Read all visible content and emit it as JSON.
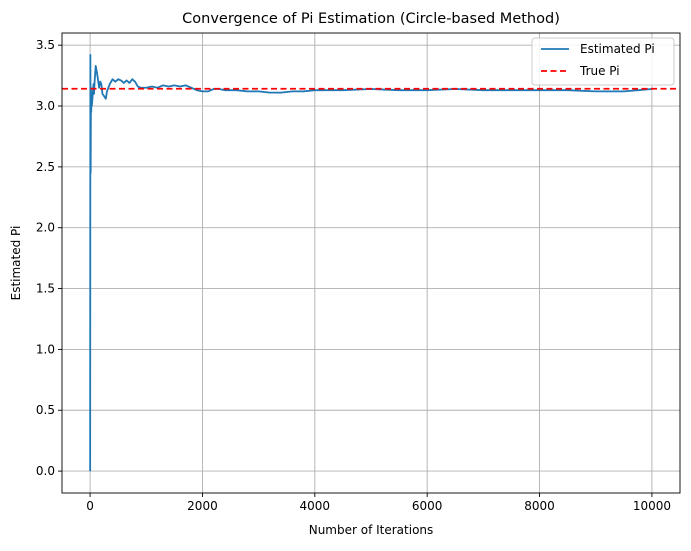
{
  "chart_data": {
    "type": "line",
    "title": "Convergence of Pi Estimation (Circle-based Method)",
    "xlabel": "Number of Iterations",
    "ylabel": "Estimated Pi",
    "xlim": [
      -500,
      10500
    ],
    "ylim": [
      -0.18,
      3.6
    ],
    "xticks": [
      0,
      2000,
      4000,
      6000,
      8000,
      10000
    ],
    "yticks": [
      0.0,
      0.5,
      1.0,
      1.5,
      2.0,
      2.5,
      3.0,
      3.5
    ],
    "xtick_labels": [
      "0",
      "2000",
      "4000",
      "6000",
      "8000",
      "10000"
    ],
    "ytick_labels": [
      "0.0",
      "0.5",
      "1.0",
      "1.5",
      "2.0",
      "2.5",
      "3.0",
      "3.5"
    ],
    "grid": true,
    "legend_position": "top-right",
    "series": [
      {
        "name": "Estimated Pi",
        "color": "#1f77b4",
        "style": "solid",
        "x": [
          1,
          5,
          10,
          15,
          20,
          25,
          30,
          40,
          50,
          60,
          70,
          80,
          100,
          120,
          140,
          160,
          180,
          200,
          220,
          250,
          280,
          300,
          350,
          400,
          450,
          500,
          550,
          600,
          650,
          700,
          750,
          800,
          850,
          900,
          1000,
          1100,
          1200,
          1300,
          1400,
          1500,
          1600,
          1700,
          1800,
          1900,
          2000,
          2100,
          2200,
          2300,
          2400,
          2600,
          2800,
          3000,
          3200,
          3400,
          3600,
          3800,
          4000,
          4500,
          5000,
          5500,
          6000,
          6500,
          7000,
          7500,
          8000,
          8500,
          9000,
          9500,
          10000
        ],
        "y": [
          0.0,
          3.42,
          2.45,
          3.15,
          2.95,
          3.1,
          3.0,
          3.05,
          3.12,
          3.18,
          3.1,
          3.2,
          3.33,
          3.28,
          3.22,
          3.15,
          3.2,
          3.18,
          3.1,
          3.08,
          3.06,
          3.12,
          3.18,
          3.22,
          3.2,
          3.22,
          3.21,
          3.19,
          3.21,
          3.19,
          3.22,
          3.2,
          3.16,
          3.15,
          3.15,
          3.16,
          3.15,
          3.17,
          3.16,
          3.17,
          3.16,
          3.17,
          3.15,
          3.13,
          3.12,
          3.12,
          3.14,
          3.14,
          3.13,
          3.13,
          3.12,
          3.12,
          3.11,
          3.11,
          3.12,
          3.12,
          3.13,
          3.13,
          3.14,
          3.13,
          3.13,
          3.14,
          3.13,
          3.13,
          3.13,
          3.13,
          3.12,
          3.12,
          3.14
        ]
      },
      {
        "name": "True Pi",
        "color": "#ff0000",
        "style": "dashed",
        "y_const": 3.14159
      }
    ]
  }
}
